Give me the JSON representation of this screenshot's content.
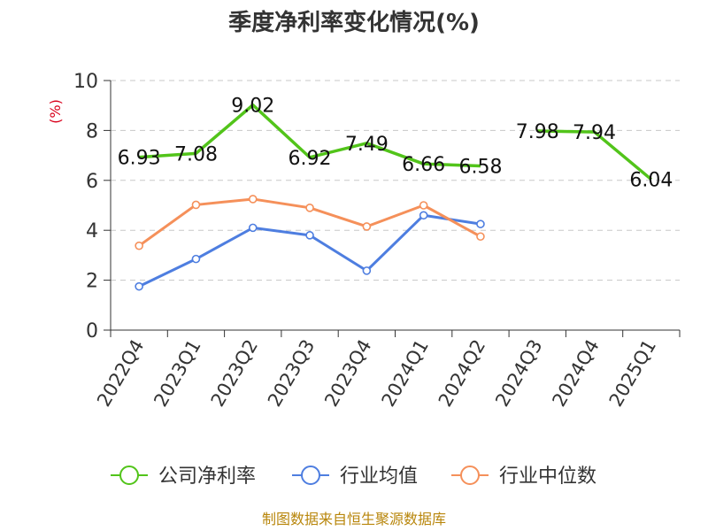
{
  "chart_data": {
    "type": "line",
    "title": "季度净利率变化情况(%)",
    "ylabel": "(%)",
    "ylim": [
      0,
      10
    ],
    "yticks": [
      "0",
      "2",
      "4",
      "6",
      "8",
      "10"
    ],
    "grid": true,
    "legend_position": "bottom",
    "categories": [
      "2022Q4",
      "2023Q1",
      "2023Q2",
      "2023Q3",
      "2023Q4",
      "2024Q1",
      "2024Q2",
      "2024Q3",
      "2024Q4",
      "2025Q1"
    ],
    "series": [
      {
        "name": "公司净利率",
        "color": "#52c41a",
        "values": [
          6.93,
          7.08,
          9.02,
          6.92,
          7.49,
          6.66,
          6.58,
          7.98,
          7.94,
          6.04
        ],
        "segments": [
          [
            0,
            6
          ],
          [
            7,
            9
          ]
        ],
        "labels": [
          "6.93",
          "7.08",
          "9.02",
          "6.92",
          "7.49",
          "6.66",
          "6.58",
          "7.98",
          "7.94",
          "6.04"
        ]
      },
      {
        "name": "行业均值",
        "color": "#4e7ee0",
        "values": [
          1.75,
          2.85,
          4.1,
          3.8,
          2.38,
          4.6,
          4.25,
          null,
          null,
          null
        ]
      },
      {
        "name": "行业中位数",
        "color": "#f5905a",
        "values": [
          3.38,
          5.02,
          5.25,
          4.9,
          4.15,
          5.0,
          3.75,
          null,
          null,
          null
        ]
      }
    ]
  },
  "footer": {
    "source": "制图数据来自恒生聚源数据库"
  }
}
